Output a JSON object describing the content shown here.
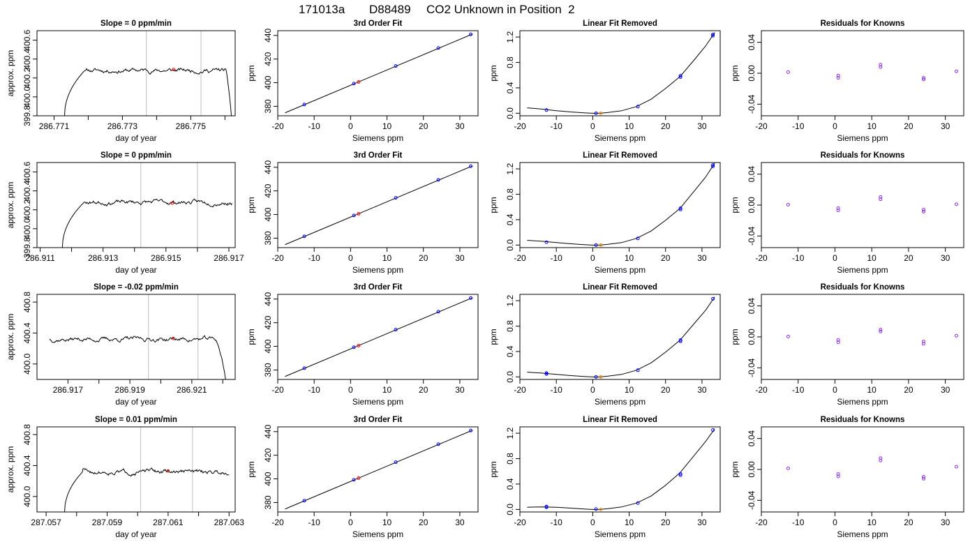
{
  "page": {
    "title_parts": [
      "171013a",
      "D88489",
      "CO2 Unknown in Position  2"
    ]
  },
  "colors": {
    "line": "#000000",
    "axis": "#000000",
    "vline": "#bebebe",
    "known_point": "#0000ff",
    "unknown_point": "#ff0000",
    "fit_point": "#ff8c00",
    "residual_point": "#8a2be2"
  },
  "chart_data": [
    {
      "id": "r1-trace",
      "type": "line",
      "title": "Slope =  0  ppm/min",
      "xlabel": "day of year",
      "ylabel": "approx. ppm",
      "xlim": [
        286.7705,
        286.7763
      ],
      "ylim": [
        399.8,
        400.7
      ],
      "xticks": [
        286.771,
        286.773,
        286.775
      ],
      "xtick_labels": [
        "286.771",
        "286.773",
        "286.775"
      ],
      "yticks": [
        399.8,
        400.0,
        400.2,
        400.4,
        400.6
      ],
      "ytick_labels": [
        "399.8",
        "400.0",
        "400.2",
        "400.4",
        "400.6"
      ],
      "x_minor_ticks": [
        286.772,
        286.774,
        286.776
      ],
      "trace": {
        "x0": 286.7713,
        "x1": 286.7762,
        "rise_end": 286.7719,
        "fall_start": 286.776,
        "level": 400.28,
        "start": 399.77,
        "end": 399.75,
        "noise": 0.02,
        "seed": 11
      },
      "vlines": [
        286.7737,
        286.7753
      ],
      "marker": {
        "x": 286.7745,
        "y": 400.29
      }
    },
    {
      "id": "r1-fit",
      "type": "scatter",
      "title": "3rd Order Fit",
      "xlabel": "Siemens ppm",
      "ylabel": "ppm",
      "xlim": [
        -20,
        35
      ],
      "ylim": [
        372,
        444
      ],
      "xticks": [
        -20,
        -10,
        0,
        10,
        20,
        30
      ],
      "xtick_labels": [
        "-20",
        "-10",
        "0",
        "10",
        "20",
        "30"
      ],
      "yticks": [
        380,
        400,
        420,
        440
      ],
      "ytick_labels": [
        "380",
        "400",
        "420",
        "440"
      ],
      "line": {
        "x": [
          -18,
          33.5
        ],
        "y": [
          374.5,
          441.2
        ]
      },
      "known_points": {
        "x": [
          -12.7,
          0.9,
          12.4,
          24.1,
          33.0
        ],
        "y": [
          381.5,
          399.2,
          414.1,
          429.3,
          440.9
        ]
      },
      "unknown_point": {
        "x": 2.2,
        "y": 400.6
      }
    },
    {
      "id": "r1-lin",
      "type": "line",
      "title": "Linear Fit Removed",
      "xlabel": "Siemens ppm",
      "ylabel": "ppm",
      "xlim": [
        -20,
        35
      ],
      "ylim": [
        -0.04,
        1.3
      ],
      "xticks": [
        -20,
        -10,
        0,
        10,
        20,
        30
      ],
      "xtick_labels": [
        "-20",
        "-10",
        "0",
        "10",
        "20",
        "30"
      ],
      "yticks": [
        0.0,
        0.4,
        0.8,
        1.2
      ],
      "ytick_labels": [
        "0.0",
        "0.4",
        "0.8",
        "1.2"
      ],
      "curve": {
        "x": [
          -18,
          -14,
          -10,
          -6,
          -2,
          0,
          2,
          4,
          8,
          12,
          16,
          20,
          24,
          28,
          31,
          33.5
        ],
        "y": [
          0.085,
          0.065,
          0.04,
          0.02,
          0.005,
          0.0,
          0.0,
          0.01,
          0.04,
          0.105,
          0.22,
          0.39,
          0.58,
          0.85,
          1.06,
          1.27
        ]
      },
      "known_points": {
        "x": [
          -12.7,
          0.9,
          12.4,
          24.1,
          24.1,
          33.0,
          33.0
        ],
        "y": [
          0.05,
          0.0,
          0.105,
          0.57,
          0.59,
          1.22,
          1.24
        ]
      },
      "fit_point": {
        "x": 2.2,
        "y": 0.0
      }
    },
    {
      "id": "r1-res",
      "type": "scatter",
      "title": "Residuals for Knowns",
      "xlabel": "Siemens ppm",
      "ylabel": "ppm",
      "xlim": [
        -20,
        35
      ],
      "ylim": [
        -0.055,
        0.055
      ],
      "xticks": [
        -20,
        -10,
        0,
        10,
        20,
        30
      ],
      "xtick_labels": [
        "-20",
        "-10",
        "0",
        "10",
        "20",
        "30"
      ],
      "yticks": [
        -0.04,
        0.0,
        0.04
      ],
      "ytick_labels": [
        "-0.04",
        "0.00",
        "0.04"
      ],
      "points": {
        "x": [
          -12.7,
          0.9,
          0.9,
          12.4,
          12.4,
          24.1,
          24.1,
          33.0
        ],
        "y": [
          0.0015,
          -0.003,
          -0.006,
          0.008,
          0.011,
          -0.006,
          -0.008,
          0.0025
        ]
      }
    },
    {
      "id": "r2-trace",
      "type": "line",
      "title": "Slope =  0  ppm/min",
      "xlabel": "day of year",
      "ylabel": "approx. ppm",
      "xlim": [
        286.9109,
        286.9172
      ],
      "ylim": [
        399.8,
        400.7
      ],
      "xticks": [
        286.911,
        286.913,
        286.915,
        286.917
      ],
      "xtick_labels": [
        "286.911",
        "286.913",
        "286.915",
        "286.917"
      ],
      "yticks": [
        399.8,
        400.0,
        400.2,
        400.4,
        400.6
      ],
      "ytick_labels": [
        "399.8",
        "400.0",
        "400.2",
        "400.4",
        "400.6"
      ],
      "x_minor_ticks": [
        286.912,
        286.914,
        286.916
      ],
      "trace": {
        "x0": 286.9117,
        "x1": 286.9171,
        "rise_end": 286.9124,
        "fall_start": 286.9172,
        "level": 400.28,
        "start": 399.77,
        "end": 400.31,
        "noise": 0.02,
        "seed": 23
      },
      "vlines": [
        286.9142,
        286.916
      ],
      "marker": {
        "x": 286.9152,
        "y": 400.27
      }
    },
    {
      "id": "r2-fit",
      "type": "scatter",
      "title": "3rd Order Fit",
      "xlabel": "Siemens ppm",
      "ylabel": "ppm",
      "xlim": [
        -20,
        35
      ],
      "ylim": [
        372,
        444
      ],
      "xticks": [
        -20,
        -10,
        0,
        10,
        20,
        30
      ],
      "xtick_labels": [
        "-20",
        "-10",
        "0",
        "10",
        "20",
        "30"
      ],
      "yticks": [
        380,
        400,
        420,
        440
      ],
      "ytick_labels": [
        "380",
        "400",
        "420",
        "440"
      ],
      "line": {
        "x": [
          -18,
          33.5
        ],
        "y": [
          374.5,
          441.2
        ]
      },
      "known_points": {
        "x": [
          -12.7,
          0.9,
          12.4,
          24.1,
          33.0
        ],
        "y": [
          381.5,
          399.2,
          414.1,
          429.3,
          440.9
        ]
      },
      "unknown_point": {
        "x": 2.2,
        "y": 400.6
      }
    },
    {
      "id": "r2-lin",
      "type": "line",
      "title": "Linear Fit Removed",
      "xlabel": "Siemens ppm",
      "ylabel": "ppm",
      "xlim": [
        -20,
        35
      ],
      "ylim": [
        -0.04,
        1.3
      ],
      "xticks": [
        -20,
        -10,
        0,
        10,
        20,
        30
      ],
      "xtick_labels": [
        "-20",
        "-10",
        "0",
        "10",
        "20",
        "30"
      ],
      "yticks": [
        0.0,
        0.4,
        0.8,
        1.2
      ],
      "ytick_labels": [
        "0.0",
        "0.4",
        "0.8",
        "1.2"
      ],
      "curve": {
        "x": [
          -18,
          -14,
          -10,
          -6,
          -2,
          0,
          2,
          4,
          8,
          12,
          16,
          20,
          24,
          28,
          31,
          33.5
        ],
        "y": [
          0.075,
          0.06,
          0.04,
          0.02,
          0.005,
          0.0,
          0.0,
          0.01,
          0.04,
          0.105,
          0.22,
          0.39,
          0.58,
          0.86,
          1.07,
          1.29
        ]
      },
      "known_points": {
        "x": [
          -12.7,
          0.9,
          12.4,
          24.1,
          24.1,
          33.0,
          33.0
        ],
        "y": [
          0.045,
          0.0,
          0.105,
          0.56,
          0.58,
          1.24,
          1.26
        ]
      },
      "fit_point": {
        "x": 2.2,
        "y": 0.0
      }
    },
    {
      "id": "r2-res",
      "type": "scatter",
      "title": "Residuals for Knowns",
      "xlabel": "Siemens ppm",
      "ylabel": "ppm",
      "xlim": [
        -20,
        35
      ],
      "ylim": [
        -0.055,
        0.055
      ],
      "xticks": [
        -20,
        -10,
        0,
        10,
        20,
        30
      ],
      "xtick_labels": [
        "-20",
        "-10",
        "0",
        "10",
        "20",
        "30"
      ],
      "yticks": [
        -0.04,
        0.0,
        0.04
      ],
      "ytick_labels": [
        "-0.04",
        "0.00",
        "0.04"
      ],
      "points": {
        "x": [
          -12.7,
          0.9,
          0.9,
          12.4,
          12.4,
          24.1,
          24.1,
          33.0
        ],
        "y": [
          0.0005,
          -0.004,
          -0.007,
          0.0075,
          0.0105,
          -0.006,
          -0.0085,
          0.001
        ]
      }
    },
    {
      "id": "r3-trace",
      "type": "line",
      "title": "Slope =  -0.02  ppm/min",
      "xlabel": "day of year",
      "ylabel": "approx. ppm",
      "xlim": [
        286.916,
        286.9224
      ],
      "ylim": [
        399.8,
        400.9
      ],
      "xticks": [
        286.917,
        286.919,
        286.921
      ],
      "xtick_labels": [
        "286.917",
        "286.919",
        "286.921"
      ],
      "yticks": [
        400.0,
        400.4,
        400.8
      ],
      "ytick_labels": [
        "400.0",
        "400.4",
        "400.8"
      ],
      "x_minor_ticks": [
        286.918,
        286.92,
        286.922
      ],
      "trace": {
        "x0": 286.9164,
        "x1": 286.9221,
        "rise_end": 286.9164,
        "fall_start": 286.92175,
        "level": 400.32,
        "start": 400.31,
        "end": 399.78,
        "noise": 0.025,
        "seed": 37
      },
      "vlines": [
        286.9196,
        286.9212
      ],
      "marker": {
        "x": 286.9204,
        "y": 400.33
      }
    },
    {
      "id": "r3-fit",
      "type": "scatter",
      "title": "3rd Order Fit",
      "xlabel": "Siemens ppm",
      "ylabel": "ppm",
      "xlim": [
        -20,
        35
      ],
      "ylim": [
        372,
        444
      ],
      "xticks": [
        -20,
        -10,
        0,
        10,
        20,
        30
      ],
      "xtick_labels": [
        "-20",
        "-10",
        "0",
        "10",
        "20",
        "30"
      ],
      "yticks": [
        380,
        400,
        420,
        440
      ],
      "ytick_labels": [
        "380",
        "400",
        "420",
        "440"
      ],
      "line": {
        "x": [
          -18,
          33.5
        ],
        "y": [
          374.5,
          441.2
        ]
      },
      "known_points": {
        "x": [
          -12.7,
          0.9,
          12.4,
          24.1,
          33.0
        ],
        "y": [
          381.5,
          399.2,
          414.1,
          429.3,
          440.9
        ]
      },
      "unknown_point": {
        "x": 2.2,
        "y": 400.6
      }
    },
    {
      "id": "r3-lin",
      "type": "line",
      "title": "Linear Fit Removed",
      "xlabel": "Siemens ppm",
      "ylabel": "ppm",
      "xlim": [
        -20,
        35
      ],
      "ylim": [
        -0.04,
        1.3
      ],
      "xticks": [
        -20,
        -10,
        0,
        10,
        20,
        30
      ],
      "xtick_labels": [
        "-20",
        "-10",
        "0",
        "10",
        "20",
        "30"
      ],
      "yticks": [
        0.0,
        0.4,
        0.8,
        1.2
      ],
      "ytick_labels": [
        "0.0",
        "0.4",
        "0.8",
        "1.2"
      ],
      "curve": {
        "x": [
          -18,
          -14,
          -10,
          -6,
          -2,
          0,
          2,
          4,
          8,
          12,
          16,
          20,
          24,
          28,
          31,
          33.5
        ],
        "y": [
          0.075,
          0.06,
          0.04,
          0.02,
          0.005,
          0.0,
          0.0,
          0.01,
          0.04,
          0.105,
          0.22,
          0.39,
          0.58,
          0.85,
          1.05,
          1.26
        ]
      },
      "known_points": {
        "x": [
          -12.7,
          -12.7,
          0.9,
          12.4,
          24.1,
          24.1,
          33.0
        ],
        "y": [
          0.045,
          0.06,
          0.0,
          0.105,
          0.56,
          0.58,
          1.23
        ]
      },
      "fit_point": {
        "x": 2.2,
        "y": 0.0
      }
    },
    {
      "id": "r3-res",
      "type": "scatter",
      "title": "Residuals for Knowns",
      "xlabel": "Siemens ppm",
      "ylabel": "ppm",
      "xlim": [
        -20,
        35
      ],
      "ylim": [
        -0.055,
        0.055
      ],
      "xticks": [
        -20,
        -10,
        0,
        10,
        20,
        30
      ],
      "xtick_labels": [
        "-20",
        "-10",
        "0",
        "10",
        "20",
        "30"
      ],
      "yticks": [
        -0.04,
        0.0,
        0.04
      ],
      "ytick_labels": [
        "-0.04",
        "0.00",
        "0.04"
      ],
      "points": {
        "x": [
          -12.7,
          0.9,
          0.9,
          12.4,
          12.4,
          24.1,
          24.1,
          33.0
        ],
        "y": [
          0.0005,
          -0.004,
          -0.007,
          0.007,
          0.0095,
          -0.006,
          -0.009,
          0.0015
        ]
      }
    },
    {
      "id": "r4-trace",
      "type": "line",
      "title": "Slope =  0.01  ppm/min",
      "xlabel": "day of year",
      "ylabel": "approx. ppm",
      "xlim": [
        287.0567,
        287.0632
      ],
      "ylim": [
        399.8,
        400.9
      ],
      "xticks": [
        287.057,
        287.059,
        287.061,
        287.063
      ],
      "xtick_labels": [
        "287.057",
        "287.059",
        "287.061",
        "287.063"
      ],
      "yticks": [
        400.0,
        400.4,
        400.8
      ],
      "ytick_labels": [
        "400.0",
        "400.4",
        "400.8"
      ],
      "x_minor_ticks": [
        287.058,
        287.06,
        287.062
      ],
      "trace": {
        "x0": 287.0576,
        "x1": 287.063,
        "rise_end": 287.0582,
        "fall_start": 287.0632,
        "level": 400.32,
        "start": 399.77,
        "end": 400.33,
        "noise": 0.025,
        "seed": 51
      },
      "vlines": [
        287.0601,
        287.0618
      ],
      "marker": {
        "x": 287.061,
        "y": 400.33
      }
    },
    {
      "id": "r4-fit",
      "type": "scatter",
      "title": "3rd Order Fit",
      "xlabel": "Siemens ppm",
      "ylabel": "ppm",
      "xlim": [
        -20,
        35
      ],
      "ylim": [
        372,
        444
      ],
      "xticks": [
        -20,
        -10,
        0,
        10,
        20,
        30
      ],
      "xtick_labels": [
        "-20",
        "-10",
        "0",
        "10",
        "20",
        "30"
      ],
      "yticks": [
        380,
        400,
        420,
        440
      ],
      "ytick_labels": [
        "380",
        "400",
        "420",
        "440"
      ],
      "line": {
        "x": [
          -18,
          33.5
        ],
        "y": [
          374.5,
          441.2
        ]
      },
      "known_points": {
        "x": [
          -12.7,
          0.9,
          12.4,
          24.1,
          33.0
        ],
        "y": [
          381.5,
          399.2,
          414.1,
          429.3,
          440.9
        ]
      },
      "unknown_point": {
        "x": 2.2,
        "y": 400.6
      }
    },
    {
      "id": "r4-lin",
      "type": "line",
      "title": "Linear Fit Removed",
      "xlabel": "Siemens ppm",
      "ylabel": "ppm",
      "xlim": [
        -20,
        35
      ],
      "ylim": [
        -0.04,
        1.3
      ],
      "xticks": [
        -20,
        -10,
        0,
        10,
        20,
        30
      ],
      "xtick_labels": [
        "-20",
        "-10",
        "0",
        "10",
        "20",
        "30"
      ],
      "yticks": [
        0.0,
        0.4,
        0.8,
        1.2
      ],
      "ytick_labels": [
        "0.0",
        "0.4",
        "0.8",
        "1.2"
      ],
      "curve": {
        "x": [
          -18,
          -14,
          -10,
          -6,
          -2,
          0,
          2,
          4,
          8,
          12,
          16,
          20,
          24,
          28,
          31,
          33.5
        ],
        "y": [
          0.035,
          0.04,
          0.035,
          0.02,
          0.005,
          0.0,
          0.0,
          0.01,
          0.04,
          0.1,
          0.21,
          0.38,
          0.58,
          0.86,
          1.07,
          1.27
        ]
      },
      "known_points": {
        "x": [
          -12.7,
          -12.7,
          0.9,
          12.4,
          24.1,
          24.1,
          33.0
        ],
        "y": [
          0.035,
          0.045,
          0.005,
          0.1,
          0.54,
          0.56,
          1.25
        ]
      },
      "fit_point": {
        "x": 2.2,
        "y": 0.0
      }
    },
    {
      "id": "r4-res",
      "type": "scatter",
      "title": "Residuals for Knowns",
      "xlabel": "Siemens ppm",
      "ylabel": "ppm",
      "xlim": [
        -20,
        35
      ],
      "ylim": [
        -0.055,
        0.055
      ],
      "xticks": [
        -20,
        -10,
        0,
        10,
        20,
        30
      ],
      "xtick_labels": [
        "-20",
        "-10",
        "0",
        "10",
        "20",
        "30"
      ],
      "yticks": [
        -0.04,
        0.0,
        0.04
      ],
      "ytick_labels": [
        "-0.04",
        "0.00",
        "0.04"
      ],
      "points": {
        "x": [
          -12.7,
          0.9,
          0.9,
          12.4,
          12.4,
          24.1,
          24.1,
          33.0
        ],
        "y": [
          0.0015,
          -0.006,
          -0.009,
          0.0115,
          0.0145,
          -0.0095,
          -0.012,
          0.0035
        ]
      }
    }
  ]
}
